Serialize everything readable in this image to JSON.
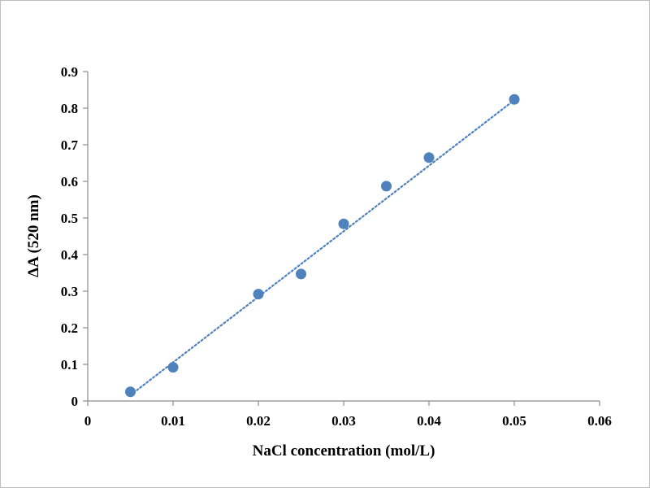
{
  "chart_data": {
    "type": "scatter",
    "title": "",
    "xlabel": "NaCl concentration (mol/L)",
    "ylabel": "ΔA (520 nm)",
    "xlim": [
      0,
      0.06
    ],
    "ylim": [
      0,
      0.9
    ],
    "x_ticks": [
      0,
      0.01,
      0.02,
      0.03,
      0.04,
      0.05,
      0.06
    ],
    "x_tick_labels": [
      "0",
      "0.01",
      "0.02",
      "0.03",
      "0.04",
      "0.05",
      "0.06"
    ],
    "y_ticks": [
      0,
      0.1,
      0.2,
      0.3,
      0.4,
      0.5,
      0.6,
      0.7,
      0.8,
      0.9
    ],
    "y_tick_labels": [
      "0",
      "0.1",
      "0.2",
      "0.3",
      "0.4",
      "0.5",
      "0.6",
      "0.7",
      "0.8",
      "0.9"
    ],
    "grid": false,
    "legend": "none",
    "marker_color": "#4f81bd",
    "trendline_color": "#4f81bd",
    "series": [
      {
        "x": [
          0.005,
          0.01,
          0.02,
          0.025,
          0.03,
          0.035,
          0.04,
          0.05
        ],
        "y": [
          0.025,
          0.092,
          0.292,
          0.347,
          0.484,
          0.587,
          0.665,
          0.824
        ]
      }
    ],
    "trendline": {
      "type": "linear",
      "style": "dotted",
      "x_range": [
        0.005,
        0.05
      ],
      "y_range": [
        0.016,
        0.822
      ]
    }
  }
}
